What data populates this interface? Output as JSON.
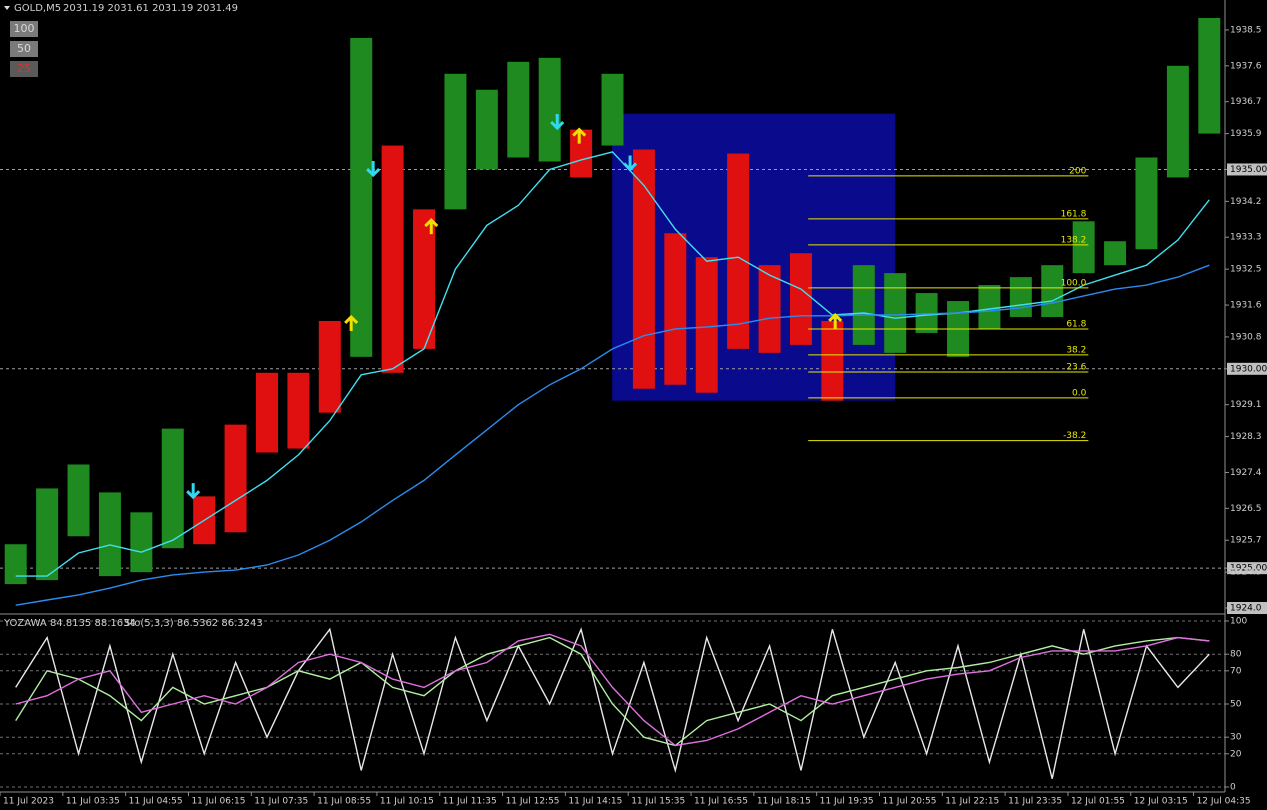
{
  "header": {
    "symbol": "GOLD,M5",
    "quote": "2031.19 2031.61 2031.19 2031.49"
  },
  "buttons": [
    "100",
    "50",
    "25"
  ],
  "chart_data": [
    {
      "type": "hilo",
      "categories": [
        "11 Jul 2023",
        null,
        "11 Jul 03:35",
        null,
        "11 Jul 04:55",
        null,
        "11 Jul 06:15",
        null,
        "11 Jul 07:35",
        null,
        "11 Jul 08:55",
        null,
        "11 Jul 10:15",
        null,
        "11 Jul 11:35",
        null,
        "11 Jul 12:55",
        null,
        "11 Jul 14:15",
        null,
        "11 Jul 15:35",
        null,
        "11 Jul 16:55",
        null,
        "11 Jul 18:15",
        null,
        "11 Jul 19:35",
        null,
        "11 Jul 20:55",
        null,
        "11 Jul 22:15",
        null,
        "11 Jul 23:35",
        null,
        "12 Jul 01:55",
        null,
        "12 Jul 03:15",
        null,
        "12 Jul 04:35"
      ],
      "highs": [
        1925.6,
        1927.0,
        1927.6,
        1926.9,
        1926.4,
        1928.5,
        1926.8,
        1928.6,
        1929.9,
        1929.9,
        1931.2,
        1938.3,
        1935.6,
        1934.0,
        1937.4,
        1937.0,
        1937.7,
        1937.8,
        1936.0,
        1937.4,
        1935.5,
        1933.4,
        1932.8,
        1935.4,
        1932.6,
        1932.9,
        1931.2,
        1932.6,
        1932.4,
        1931.9,
        1931.7,
        1932.1,
        1932.3,
        1932.6,
        1933.7,
        1933.2,
        1935.3,
        1937.6,
        1938.8
      ],
      "lows": [
        1924.6,
        1924.7,
        1925.8,
        1924.8,
        1924.9,
        1925.5,
        1925.6,
        1925.9,
        1927.9,
        1928.0,
        1928.9,
        1930.3,
        1929.9,
        1930.5,
        1934.0,
        1935.0,
        1935.3,
        1935.2,
        1934.8,
        1935.6,
        1929.5,
        1929.6,
        1929.4,
        1930.5,
        1930.4,
        1930.6,
        1929.2,
        1930.6,
        1930.4,
        1930.9,
        1930.3,
        1931.0,
        1931.3,
        1931.3,
        1932.4,
        1932.6,
        1933.0,
        1934.8,
        1935.9
      ],
      "bar_colors": [
        "#1f8a1f",
        "#1f8a1f",
        "#1f8a1f",
        "#1f8a1f",
        "#1f8a1f",
        "#1f8a1f",
        "#e01010",
        "#e01010",
        "#e01010",
        "#e01010",
        "#e01010",
        "#1f8a1f",
        "#e01010",
        "#e01010",
        "#1f8a1f",
        "#1f8a1f",
        "#1f8a1f",
        "#1f8a1f",
        "#e01010",
        "#1f8a1f",
        "#e01010",
        "#e01010",
        "#e01010",
        "#e01010",
        "#e01010",
        "#e01010",
        "#e01010",
        "#1f8a1f",
        "#1f8a1f",
        "#1f8a1f",
        "#1f8a1f",
        "#1f8a1f",
        "#1f8a1f",
        "#1f8a1f",
        "#1f8a1f",
        "#1f8a1f",
        "#1f8a1f",
        "#1f8a1f",
        "#1f8a1f"
      ],
      "series": [
        {
          "color": "#40e0f0",
          "values": [
            1924.8,
            1924.8,
            1925.38,
            1925.58,
            1925.4,
            1925.7,
            1926.2,
            1926.7,
            1927.2,
            1927.84,
            1928.7,
            1929.85,
            1930.0,
            1930.5,
            1932.5,
            1933.6,
            1934.1,
            1935.0,
            1935.24,
            1935.44,
            1934.6,
            1933.5,
            1932.7,
            1932.8,
            1932.35,
            1932.0,
            1931.35,
            1931.4,
            1931.27,
            1931.35,
            1931.4,
            1931.5,
            1931.6,
            1931.7,
            1932.1,
            1932.35,
            1932.6,
            1933.23,
            1934.24
          ]
        },
        {
          "color": "#2a8cf0",
          "values": [
            1924.07,
            1924.2,
            1924.33,
            1924.5,
            1924.7,
            1924.83,
            1924.9,
            1924.95,
            1925.08,
            1925.33,
            1925.7,
            1926.16,
            1926.7,
            1927.2,
            1927.84,
            1928.47,
            1929.1,
            1929.6,
            1930.0,
            1930.5,
            1930.83,
            1931.0,
            1931.05,
            1931.12,
            1931.27,
            1931.33,
            1931.33,
            1931.35,
            1931.35,
            1931.38,
            1931.4,
            1931.45,
            1931.53,
            1931.65,
            1931.83,
            1932.0,
            1932.1,
            1932.3,
            1932.6
          ]
        }
      ],
      "ylim": [
        1923.9,
        1938.95
      ],
      "yticks": [
        1938.5,
        1937.6,
        1936.7,
        1935.9,
        {
          "value": 1935,
          "label": "1935.00"
        },
        1934.2,
        1933.3,
        1932.5,
        1931.6,
        1930.8,
        {
          "value": 1930,
          "label": "1930.00"
        },
        1929.1,
        1928.3,
        1927.4,
        1926.5,
        1925.7,
        {
          "value": 1925,
          "label": "1925.00"
        },
        1924.9,
        {
          "value": 1924,
          "label": "1924.0"
        }
      ],
      "hlines": [
        1935,
        1930,
        1925
      ],
      "box": {
        "from": 18.99,
        "to": 28.0,
        "top": 1936.4,
        "bottom": 1929.2,
        "color": "#0a0a8c"
      },
      "fib": {
        "from": 25.23,
        "to": 34.15,
        "color": "#e8e800",
        "levels": [
          {
            "label": "200",
            "price": 1934.84
          },
          {
            "label": "161.8",
            "price": 1933.76
          },
          {
            "label": "138.2",
            "price": 1933.11
          },
          {
            "label": "100.0",
            "price": 1932.03
          },
          {
            "label": "61.8",
            "price": 1931.0
          },
          {
            "label": "38.2",
            "price": 1930.35
          },
          {
            "label": "23.6",
            "price": 1929.92
          },
          {
            "label": "0.0",
            "price": 1929.27
          },
          {
            "label": "-38.2",
            "price": 1928.2
          }
        ]
      },
      "down_arrows": {
        "color": "#30d8f0",
        "points": [
          {
            "x": 5.65,
            "price": 1926.78
          },
          {
            "x": 11.38,
            "price": 1934.86
          },
          {
            "x": 17.24,
            "price": 1936.04
          },
          {
            "x": 19.56,
            "price": 1935.0
          }
        ]
      },
      "up_arrows": {
        "color": "#f0e000",
        "points": [
          {
            "x": 10.68,
            "price": 1931.3
          },
          {
            "x": 13.23,
            "price": 1933.73
          },
          {
            "x": 17.94,
            "price": 1936.0
          },
          {
            "x": 26.09,
            "price": 1931.35
          }
        ]
      }
    },
    {
      "type": "line",
      "title": "YOZAWA 84.8135 88.1634",
      "subtitle": "Sto(5,3,3) 86.5362 86.3243",
      "series": [
        {
          "color": "#e8e8e8",
          "values": [
            60,
            90,
            20,
            85,
            15,
            80,
            20,
            75,
            30,
            70,
            95,
            10,
            80,
            20,
            90,
            40,
            85,
            50,
            95,
            20,
            75,
            10,
            90,
            40,
            85,
            10,
            95,
            30,
            75,
            20,
            85,
            15,
            80,
            5,
            95,
            20,
            85,
            60,
            80
          ]
        },
        {
          "color": "#b0f0a0",
          "values": [
            40,
            70,
            65,
            55,
            40,
            60,
            50,
            55,
            60,
            70,
            65,
            75,
            60,
            55,
            70,
            80,
            85,
            90,
            80,
            50,
            30,
            25,
            40,
            45,
            50,
            40,
            55,
            60,
            65,
            70,
            72,
            75,
            80,
            85,
            80,
            85,
            88,
            90,
            88
          ]
        },
        {
          "color": "#e070e0",
          "values": [
            50,
            55,
            65,
            70,
            45,
            50,
            55,
            50,
            60,
            75,
            80,
            75,
            65,
            60,
            70,
            75,
            88,
            92,
            85,
            60,
            40,
            25,
            28,
            35,
            45,
            55,
            50,
            55,
            60,
            65,
            68,
            70,
            78,
            82,
            82,
            82,
            85,
            90,
            88
          ]
        }
      ],
      "ylim": [
        0,
        100
      ],
      "yticks": [
        100,
        80,
        70,
        50,
        30,
        20,
        0
      ],
      "grid": true
    }
  ]
}
